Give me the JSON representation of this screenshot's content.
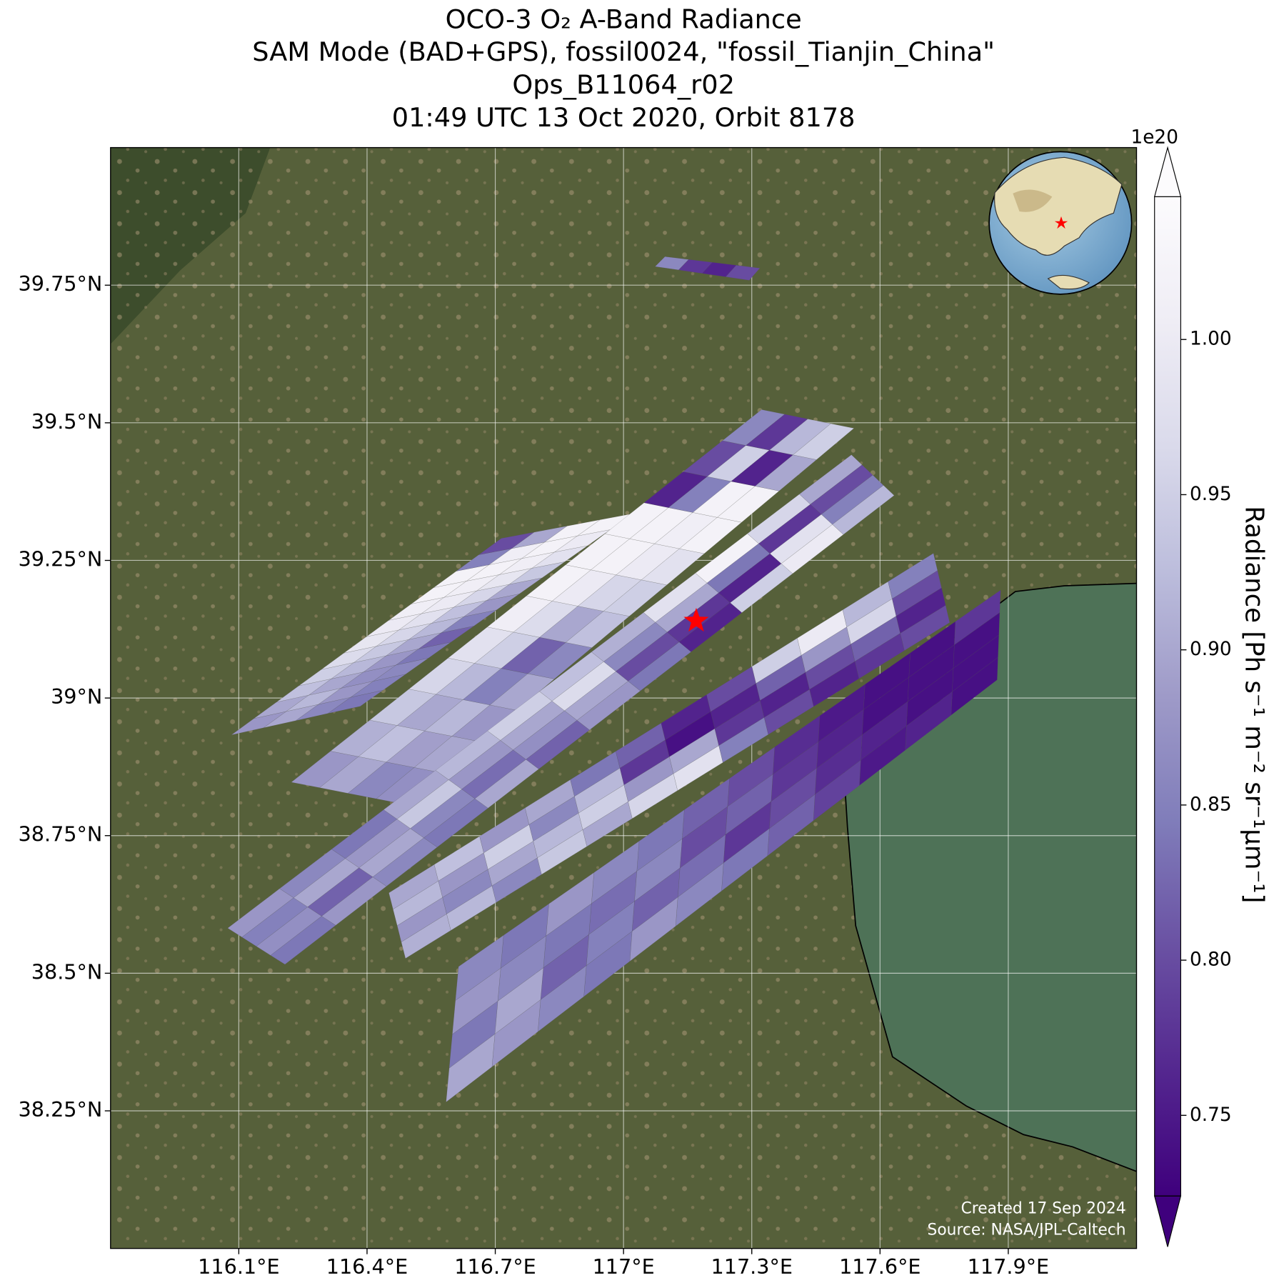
{
  "chart_data": {
    "type": "map",
    "title": [
      "OCO-3 O₂ A-Band Radiance",
      "SAM Mode (BAD+GPS), fossil0024, \"fossil_Tianjin_China\"",
      "Ops_B11064_r02",
      "01:49 UTC 13 Oct 2020, Orbit 8178"
    ],
    "xlim": [
      115.8,
      118.2
    ],
    "ylim": [
      38.0,
      40.0
    ],
    "xticks": [
      {
        "value": 116.1,
        "label": "116.1°E"
      },
      {
        "value": 116.4,
        "label": "116.4°E"
      },
      {
        "value": 116.7,
        "label": "116.7°E"
      },
      {
        "value": 117,
        "label": "117°E"
      },
      {
        "value": 117.3,
        "label": "117.3°E"
      },
      {
        "value": 117.6,
        "label": "117.6°E"
      },
      {
        "value": 117.9,
        "label": "117.9°E"
      }
    ],
    "yticks": [
      {
        "value": 38.25,
        "label": "38.25°N"
      },
      {
        "value": 38.5,
        "label": "38.5°N"
      },
      {
        "value": 38.75,
        "label": "38.75°N"
      },
      {
        "value": 39,
        "label": "39°N"
      },
      {
        "value": 39.25,
        "label": "39.25°N"
      },
      {
        "value": 39.5,
        "label": "39.5°N"
      },
      {
        "value": 39.75,
        "label": "39.75°N"
      }
    ],
    "grid": true,
    "site": {
      "lon": 117.17,
      "lat": 39.14,
      "color": "#ff0000"
    },
    "swaths": [
      {
        "corners": [
          [
            117.097,
            39.802
          ],
          [
            117.319,
            39.781
          ],
          [
            117.294,
            39.759
          ],
          [
            117.074,
            39.784
          ]
        ],
        "values": [
          [
            0.86
          ],
          [
            0.78
          ],
          [
            0.76
          ],
          [
            0.8
          ]
        ]
      },
      {
        "corners": [
          [
            116.083,
            38.933
          ],
          [
            116.714,
            39.29
          ],
          [
            117.022,
            39.335
          ],
          [
            116.384,
            38.985
          ]
        ],
        "values": [
          [
            0.88,
            0.9,
            0.86,
            0.84
          ],
          [
            0.9,
            0.92,
            0.88,
            0.85
          ],
          [
            0.93,
            0.9,
            0.87,
            0.86
          ],
          [
            0.95,
            0.92,
            0.88,
            0.84
          ],
          [
            0.97,
            0.94,
            0.9,
            0.82
          ],
          [
            0.99,
            0.96,
            0.92,
            0.85
          ],
          [
            1.0,
            0.98,
            0.93,
            0.88
          ],
          [
            1.01,
            1.0,
            0.96,
            0.9
          ],
          [
            1.02,
            1.01,
            0.99,
            0.94
          ],
          [
            1.02,
            1.02,
            1.01,
            0.98
          ],
          [
            0.85,
            1.01,
            1.02,
            1.0
          ],
          [
            0.8,
            0.9,
            1.02,
            1.02
          ]
        ]
      },
      {
        "corners": [
          [
            116.223,
            38.847
          ],
          [
            117.323,
            39.524
          ],
          [
            117.539,
            39.49
          ],
          [
            116.488,
            38.807
          ]
        ],
        "values": [
          [
            0.88,
            0.9,
            0.86,
            0.87
          ],
          [
            0.91,
            0.93,
            0.89,
            0.9
          ],
          [
            0.94,
            0.9,
            0.92,
            0.88
          ],
          [
            0.96,
            0.92,
            0.85,
            0.9
          ],
          [
            0.98,
            0.95,
            0.82,
            0.86
          ],
          [
            1.01,
            0.97,
            0.9,
            0.93
          ],
          [
            1.02,
            1.0,
            0.96,
            0.95
          ],
          [
            1.02,
            1.02,
            1.0,
            0.98
          ],
          [
            1.02,
            1.02,
            1.01,
            1.02
          ],
          [
            0.76,
            0.85,
            1.02,
            1.02
          ],
          [
            0.8,
            0.95,
            0.76,
            0.9
          ],
          [
            0.86,
            0.78,
            0.92,
            0.95
          ]
        ]
      },
      {
        "corners": [
          [
            116.074,
            38.582
          ],
          [
            117.533,
            39.442
          ],
          [
            117.633,
            39.368
          ],
          [
            116.208,
            38.516
          ]
        ],
        "values": [
          [
            0.88,
            0.85,
            0.87,
            0.84
          ],
          [
            0.86,
            0.9,
            0.82,
            0.88
          ],
          [
            0.84,
            0.88,
            0.9,
            0.86
          ],
          [
            0.9,
            0.94,
            0.86,
            0.84
          ],
          [
            0.92,
            0.88,
            0.83,
            0.9
          ],
          [
            0.95,
            0.9,
            0.87,
            0.82
          ],
          [
            0.93,
            0.97,
            0.9,
            0.88
          ],
          [
            0.91,
            0.86,
            0.8,
            0.84
          ],
          [
            0.98,
            0.9,
            0.78,
            0.76
          ],
          [
            1.02,
            0.84,
            0.76,
            0.95
          ],
          [
            0.96,
            0.78,
            0.98,
            1.0
          ],
          [
            0.9,
            0.8,
            0.85,
            0.92
          ]
        ]
      },
      {
        "corners": [
          [
            116.451,
            38.646
          ],
          [
            117.725,
            39.263
          ],
          [
            117.763,
            39.137
          ],
          [
            116.49,
            38.527
          ]
        ],
        "values": [
          [
            0.9,
            0.92,
            0.88,
            0.91
          ],
          [
            0.93,
            0.88,
            0.86,
            0.92
          ],
          [
            0.88,
            0.95,
            0.9,
            0.86
          ],
          [
            0.9,
            0.86,
            0.92,
            0.94
          ],
          [
            0.84,
            0.92,
            0.95,
            0.9
          ],
          [
            0.82,
            0.78,
            0.88,
            0.96
          ],
          [
            0.76,
            0.74,
            0.9,
            0.98
          ],
          [
            0.8,
            0.76,
            0.78,
            0.85
          ],
          [
            0.95,
            0.82,
            0.76,
            0.8
          ],
          [
            1.0,
            0.88,
            0.8,
            0.76
          ],
          [
            0.92,
            0.96,
            0.82,
            0.78
          ],
          [
            0.85,
            0.8,
            0.76,
            0.8
          ]
        ]
      },
      {
        "corners": [
          [
            116.614,
            38.512
          ],
          [
            117.882,
            39.196
          ],
          [
            117.874,
            39.033
          ],
          [
            116.585,
            38.266
          ]
        ],
        "values": [
          [
            0.86,
            0.88,
            0.84,
            0.9
          ],
          [
            0.84,
            0.86,
            0.9,
            0.88
          ],
          [
            0.88,
            0.84,
            0.82,
            0.86
          ],
          [
            0.86,
            0.83,
            0.85,
            0.84
          ],
          [
            0.84,
            0.86,
            0.82,
            0.88
          ],
          [
            0.82,
            0.8,
            0.83,
            0.86
          ],
          [
            0.8,
            0.82,
            0.78,
            0.84
          ],
          [
            0.77,
            0.78,
            0.8,
            0.82
          ],
          [
            0.75,
            0.76,
            0.77,
            0.79
          ],
          [
            0.74,
            0.74,
            0.76,
            0.75
          ],
          [
            0.74,
            0.74,
            0.74,
            0.76
          ],
          [
            0.78,
            0.74,
            0.74,
            0.74
          ]
        ]
      }
    ],
    "colorbar": {
      "label": "Radiance [Ph s⁻¹ m⁻² sr⁻¹μm⁻¹]",
      "offset_label": "1e20",
      "colormap": "Purples",
      "clim": [
        0.724,
        1.046
      ],
      "ticks": [
        0.75,
        {
          "value": 0.8,
          "label": "0.80"
        },
        0.85,
        {
          "value": 0.9,
          "label": "0.90"
        },
        0.95,
        {
          "value": 1.0,
          "label": "1.00"
        }
      ]
    },
    "notes": [
      "Created 17 Sep 2024",
      "Source: NASA/JPL-Caltech"
    ]
  }
}
